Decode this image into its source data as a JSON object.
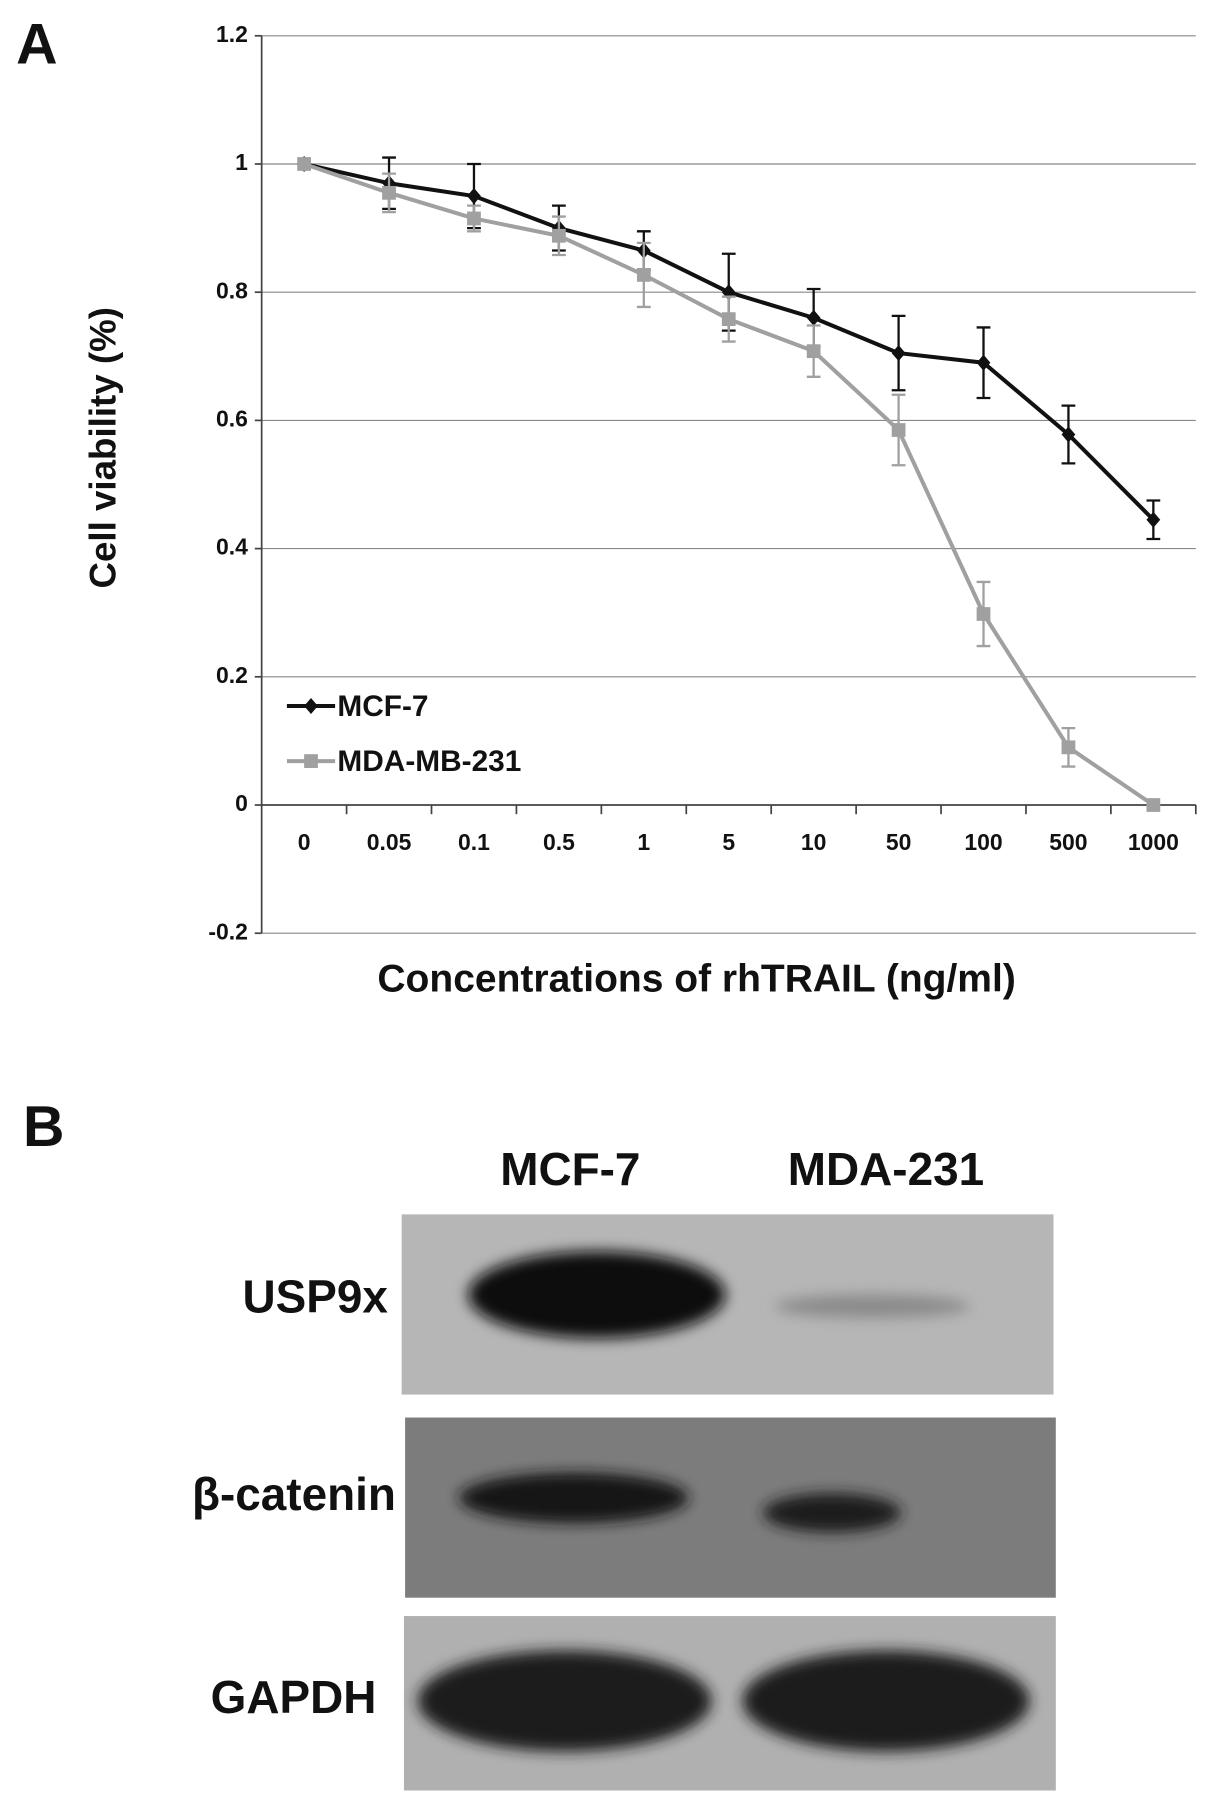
{
  "chart_data": {
    "type": "line",
    "panel_label": "A",
    "x_label": "Concentrations of rhTRAIL (ng/ml)",
    "y_label": "Cell viability (%)",
    "categories": [
      "0",
      "0.05",
      "0.1",
      "0.5",
      "1",
      "5",
      "10",
      "50",
      "100",
      "500",
      "1000"
    ],
    "series": [
      {
        "name": "MCF-7",
        "color": "#111111",
        "marker": "diamond",
        "values": [
          1,
          0.97,
          0.95,
          0.9,
          0.865,
          0.8,
          0.76,
          0.705,
          0.69,
          0.578,
          0.445
        ],
        "errors": [
          0,
          0.04,
          0.05,
          0.035,
          0.03,
          0.06,
          0.045,
          0.058,
          0.055,
          0.045,
          0.03
        ]
      },
      {
        "name": "MDA-MB-231",
        "color": "#a0a0a0",
        "marker": "square",
        "values": [
          1,
          0.955,
          0.915,
          0.888,
          0.827,
          0.758,
          0.708,
          0.585,
          0.298,
          0.09,
          0
        ],
        "errors": [
          0,
          0.03,
          0.02,
          0.03,
          0.05,
          0.035,
          0.04,
          0.055,
          0.05,
          0.03,
          0
        ]
      }
    ],
    "ylim": [
      -0.2,
      1.2
    ],
    "yticks": [
      -0.2,
      0,
      0.2,
      0.4,
      0.6,
      0.8,
      1,
      1.2
    ],
    "grid": true,
    "legend": "lower left"
  },
  "blot": {
    "panel_label": "B",
    "lanes": [
      "MCF-7",
      "MDA-231"
    ],
    "rows": [
      "USP9x",
      "β-catenin",
      "GAPDH"
    ]
  }
}
